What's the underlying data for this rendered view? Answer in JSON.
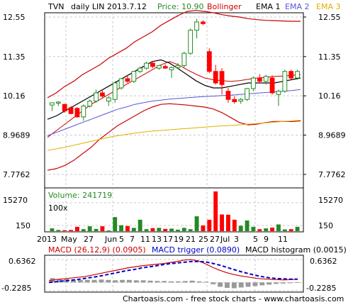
{
  "header": {
    "ticker": "TVN",
    "period": "daily LIN 2013.7.12",
    "price_label": "Price: 10.90",
    "bollinger_label": "Bollinger",
    "ema1_label": "EMA 1",
    "ema2_label": "EMA 2",
    "ema3_label": "EMA 3"
  },
  "colors": {
    "up": "#228b22",
    "down": "#ff0000",
    "bollinger": "#cc0000",
    "ema1": "#000000",
    "ema2": "#5555dd",
    "ema3": "#e0b000",
    "volume_label": "#228b22",
    "macd": "#cc0000",
    "trigger": "#0000cc",
    "histogram": "#999999",
    "grid": "#c8c8c8",
    "price_header": "#228b22"
  },
  "volume": {
    "label": "Volume: 241719",
    "multiplier": "100x",
    "ticks": [
      "15270",
      "150"
    ]
  },
  "macd": {
    "macd_label": "MACD (26,12,9) (0.0905)",
    "trigger_label": "MACD trigger (0.0890)",
    "histogram_label": "MACD histogram (0.0015)",
    "ticks": [
      "0.6362",
      "-0.2285"
    ]
  },
  "footer": {
    "left": "Chartoasis.com - free stock charts - www.chartoasis.com",
    "right": "Chartoasis.com"
  },
  "chart_data": {
    "type": "candlestick",
    "y_ticks": [
      "12.55",
      "11.35",
      "10.16",
      "8.9689",
      "7.7762"
    ],
    "y_tick_values": [
      12.55,
      11.35,
      10.16,
      8.9689,
      7.7762
    ],
    "ylim": [
      7.7762,
      12.55
    ],
    "x_labels": [
      "2013",
      "May",
      "27",
      "Jun",
      "5",
      "7",
      "11",
      "13",
      "17",
      "19",
      "21",
      "25",
      "27",
      "Jul",
      "3",
      "5",
      "9",
      "11"
    ],
    "candles": [
      {
        "o": 9.88,
        "h": 9.95,
        "l": 9.7,
        "c": 9.95
      },
      {
        "o": 9.95,
        "h": 10.0,
        "l": 9.85,
        "c": 9.97
      },
      {
        "o": 9.9,
        "h": 9.92,
        "l": 9.65,
        "c": 9.7
      },
      {
        "o": 9.8,
        "h": 9.85,
        "l": 9.6,
        "c": 9.62
      },
      {
        "o": 9.78,
        "h": 9.82,
        "l": 9.5,
        "c": 9.52
      },
      {
        "o": 9.52,
        "h": 9.9,
        "l": 9.4,
        "c": 9.85
      },
      {
        "o": 9.85,
        "h": 10.05,
        "l": 9.8,
        "c": 10.0
      },
      {
        "o": 10.0,
        "h": 10.35,
        "l": 9.95,
        "c": 10.25
      },
      {
        "o": 10.25,
        "h": 10.35,
        "l": 10.1,
        "c": 10.15
      },
      {
        "o": 10.0,
        "h": 10.15,
        "l": 9.85,
        "c": 10.1
      },
      {
        "o": 10.05,
        "h": 10.6,
        "l": 9.95,
        "c": 10.55
      },
      {
        "o": 10.4,
        "h": 10.7,
        "l": 10.35,
        "c": 10.68
      },
      {
        "o": 10.68,
        "h": 10.8,
        "l": 10.55,
        "c": 10.6
      },
      {
        "o": 10.6,
        "h": 10.92,
        "l": 10.55,
        "c": 10.9
      },
      {
        "o": 10.9,
        "h": 11.05,
        "l": 10.85,
        "c": 11.0
      },
      {
        "o": 11.0,
        "h": 11.2,
        "l": 10.95,
        "c": 11.15
      },
      {
        "o": 11.15,
        "h": 11.22,
        "l": 11.0,
        "c": 11.05
      },
      {
        "o": 11.0,
        "h": 11.1,
        "l": 10.95,
        "c": 11.08
      },
      {
        "o": 11.05,
        "h": 11.12,
        "l": 10.98,
        "c": 11.0
      },
      {
        "o": 10.95,
        "h": 11.05,
        "l": 10.7,
        "c": 11.02
      },
      {
        "o": 11.02,
        "h": 11.15,
        "l": 10.98,
        "c": 11.08
      },
      {
        "o": 11.08,
        "h": 11.5,
        "l": 11.0,
        "c": 11.45
      },
      {
        "o": 11.45,
        "h": 12.2,
        "l": 11.4,
        "c": 12.15
      },
      {
        "o": 12.15,
        "h": 12.5,
        "l": 11.9,
        "c": 12.4
      },
      {
        "o": 12.4,
        "h": 12.45,
        "l": 12.3,
        "c": 12.35
      },
      {
        "o": 11.5,
        "h": 11.6,
        "l": 10.85,
        "c": 10.9
      },
      {
        "o": 10.9,
        "h": 11.1,
        "l": 10.5,
        "c": 10.55
      },
      {
        "o": 10.9,
        "h": 11.0,
        "l": 10.2,
        "c": 10.5
      },
      {
        "o": 10.3,
        "h": 10.4,
        "l": 9.95,
        "c": 10.05
      },
      {
        "o": 10.05,
        "h": 10.15,
        "l": 9.92,
        "c": 9.98
      },
      {
        "o": 10.0,
        "h": 10.1,
        "l": 9.92,
        "c": 10.05
      },
      {
        "o": 10.05,
        "h": 10.4,
        "l": 10.0,
        "c": 10.38
      },
      {
        "o": 10.38,
        "h": 10.75,
        "l": 10.3,
        "c": 10.7
      },
      {
        "o": 10.7,
        "h": 10.82,
        "l": 10.55,
        "c": 10.6
      },
      {
        "o": 10.6,
        "h": 10.8,
        "l": 10.5,
        "c": 10.75
      },
      {
        "o": 10.7,
        "h": 10.78,
        "l": 10.2,
        "c": 10.25
      },
      {
        "o": 10.2,
        "h": 10.35,
        "l": 9.85,
        "c": 10.3
      },
      {
        "o": 10.3,
        "h": 10.95,
        "l": 10.25,
        "c": 10.9
      },
      {
        "o": 10.9,
        "h": 10.95,
        "l": 10.65,
        "c": 10.7
      },
      {
        "o": 10.7,
        "h": 10.95,
        "l": 10.65,
        "c": 10.9
      }
    ],
    "bollinger_upper": [
      10.1,
      10.25,
      10.45,
      10.6,
      10.8,
      10.95,
      11.1,
      11.3,
      11.45,
      11.6,
      11.8,
      11.95,
      12.1,
      12.3,
      12.45,
      12.6,
      12.72,
      12.75,
      12.72,
      12.68,
      12.62,
      12.58,
      12.55,
      12.5,
      12.47,
      12.45,
      12.44,
      12.43,
      12.42,
      12.42
    ],
    "bollinger_lower": [
      7.9,
      7.95,
      8.05,
      8.2,
      8.4,
      8.6,
      8.85,
      9.05,
      9.25,
      9.4,
      9.55,
      9.7,
      9.82,
      9.9,
      9.92,
      9.9,
      9.88,
      9.85,
      9.82,
      9.76,
      9.65,
      9.5,
      9.35,
      9.28,
      9.3,
      9.35,
      9.38,
      9.38,
      9.38,
      9.4
    ],
    "bollinger_middle": [
      8.9,
      9.1,
      9.3,
      9.5,
      9.7,
      9.9,
      10.05,
      10.2,
      10.35,
      10.5,
      10.65,
      10.8,
      10.95,
      11.1,
      11.2,
      11.1,
      10.95,
      10.82,
      10.7,
      10.65,
      10.62,
      10.6,
      10.62,
      10.66,
      10.7,
      10.72,
      10.75,
      10.76,
      10.78,
      10.8
    ],
    "ema1": [
      9.45,
      9.55,
      9.7,
      9.85,
      10.0,
      10.15,
      10.3,
      10.45,
      10.6,
      10.75,
      10.9,
      11.05,
      11.2,
      11.25,
      11.15,
      10.98,
      10.8,
      10.62,
      10.48,
      10.4,
      10.4,
      10.45,
      10.5,
      10.55,
      10.55,
      10.55,
      10.55,
      10.6,
      10.65,
      10.7
    ],
    "ema2": [
      8.95,
      9.05,
      9.15,
      9.25,
      9.35,
      9.45,
      9.55,
      9.65,
      9.75,
      9.82,
      9.9,
      9.95,
      10.0,
      10.03,
      10.06,
      10.08,
      10.1,
      10.12,
      10.14,
      10.15,
      10.17,
      10.18,
      10.2,
      10.22,
      10.24,
      10.26,
      10.28,
      10.3,
      10.32,
      10.35
    ],
    "ema3": [
      8.5,
      8.55,
      8.6,
      8.66,
      8.72,
      8.78,
      8.84,
      8.9,
      8.95,
      8.99,
      9.03,
      9.06,
      9.09,
      9.11,
      9.13,
      9.15,
      9.17,
      9.19,
      9.21,
      9.23,
      9.25,
      9.26,
      9.28,
      9.3,
      9.32,
      9.34,
      9.36,
      9.38,
      9.4,
      9.42
    ],
    "volume_values": [
      1200,
      600,
      500,
      600,
      1800,
      900,
      2000,
      1000,
      2000,
      400,
      5500,
      2400,
      2100,
      1400,
      4500,
      900,
      1300,
      1400,
      1000,
      1100,
      700,
      1400,
      900,
      5800,
      2300,
      4500,
      15270,
      6500,
      6400,
      4500,
      2200,
      4200,
      1800,
      900,
      1200,
      1500,
      2700,
      800,
      900,
      1800
    ],
    "volume_ylim": [
      150,
      15270
    ],
    "macd_values": [
      0.05,
      0.08,
      0.1,
      0.12,
      0.14,
      0.16,
      0.2,
      0.24,
      0.28,
      0.32,
      0.36,
      0.4,
      0.43,
      0.46,
      0.48,
      0.5,
      0.52,
      0.55,
      0.58,
      0.62,
      0.63,
      0.6,
      0.52,
      0.42,
      0.34,
      0.27,
      0.22,
      0.18,
      0.15,
      0.12,
      0.1,
      0.09,
      0.08,
      0.07,
      0.08,
      0.09
    ],
    "trigger_values": [
      0.0,
      0.02,
      0.04,
      0.06,
      0.08,
      0.11,
      0.14,
      0.17,
      0.21,
      0.25,
      0.29,
      0.33,
      0.36,
      0.4,
      0.43,
      0.46,
      0.49,
      0.52,
      0.54,
      0.56,
      0.58,
      0.58,
      0.57,
      0.53,
      0.48,
      0.42,
      0.36,
      0.3,
      0.25,
      0.2,
      0.16,
      0.13,
      0.11,
      0.1,
      0.09,
      0.09
    ],
    "histogram_values": [
      0.12,
      0.1,
      0.09,
      0.08,
      0.07,
      0.07,
      0.07,
      0.08,
      0.07,
      0.06,
      0.07,
      0.07,
      0.06,
      0.06,
      0.05,
      0.04,
      0.04,
      0.03,
      0.03,
      0.04,
      0.05,
      0.03,
      0.02,
      -0.05,
      -0.12,
      -0.15,
      -0.16,
      -0.14,
      -0.12,
      -0.1,
      -0.08,
      -0.06,
      -0.04,
      -0.03,
      -0.02,
      0.01
    ],
    "macd_ylim": [
      -0.2285,
      0.6362
    ]
  }
}
